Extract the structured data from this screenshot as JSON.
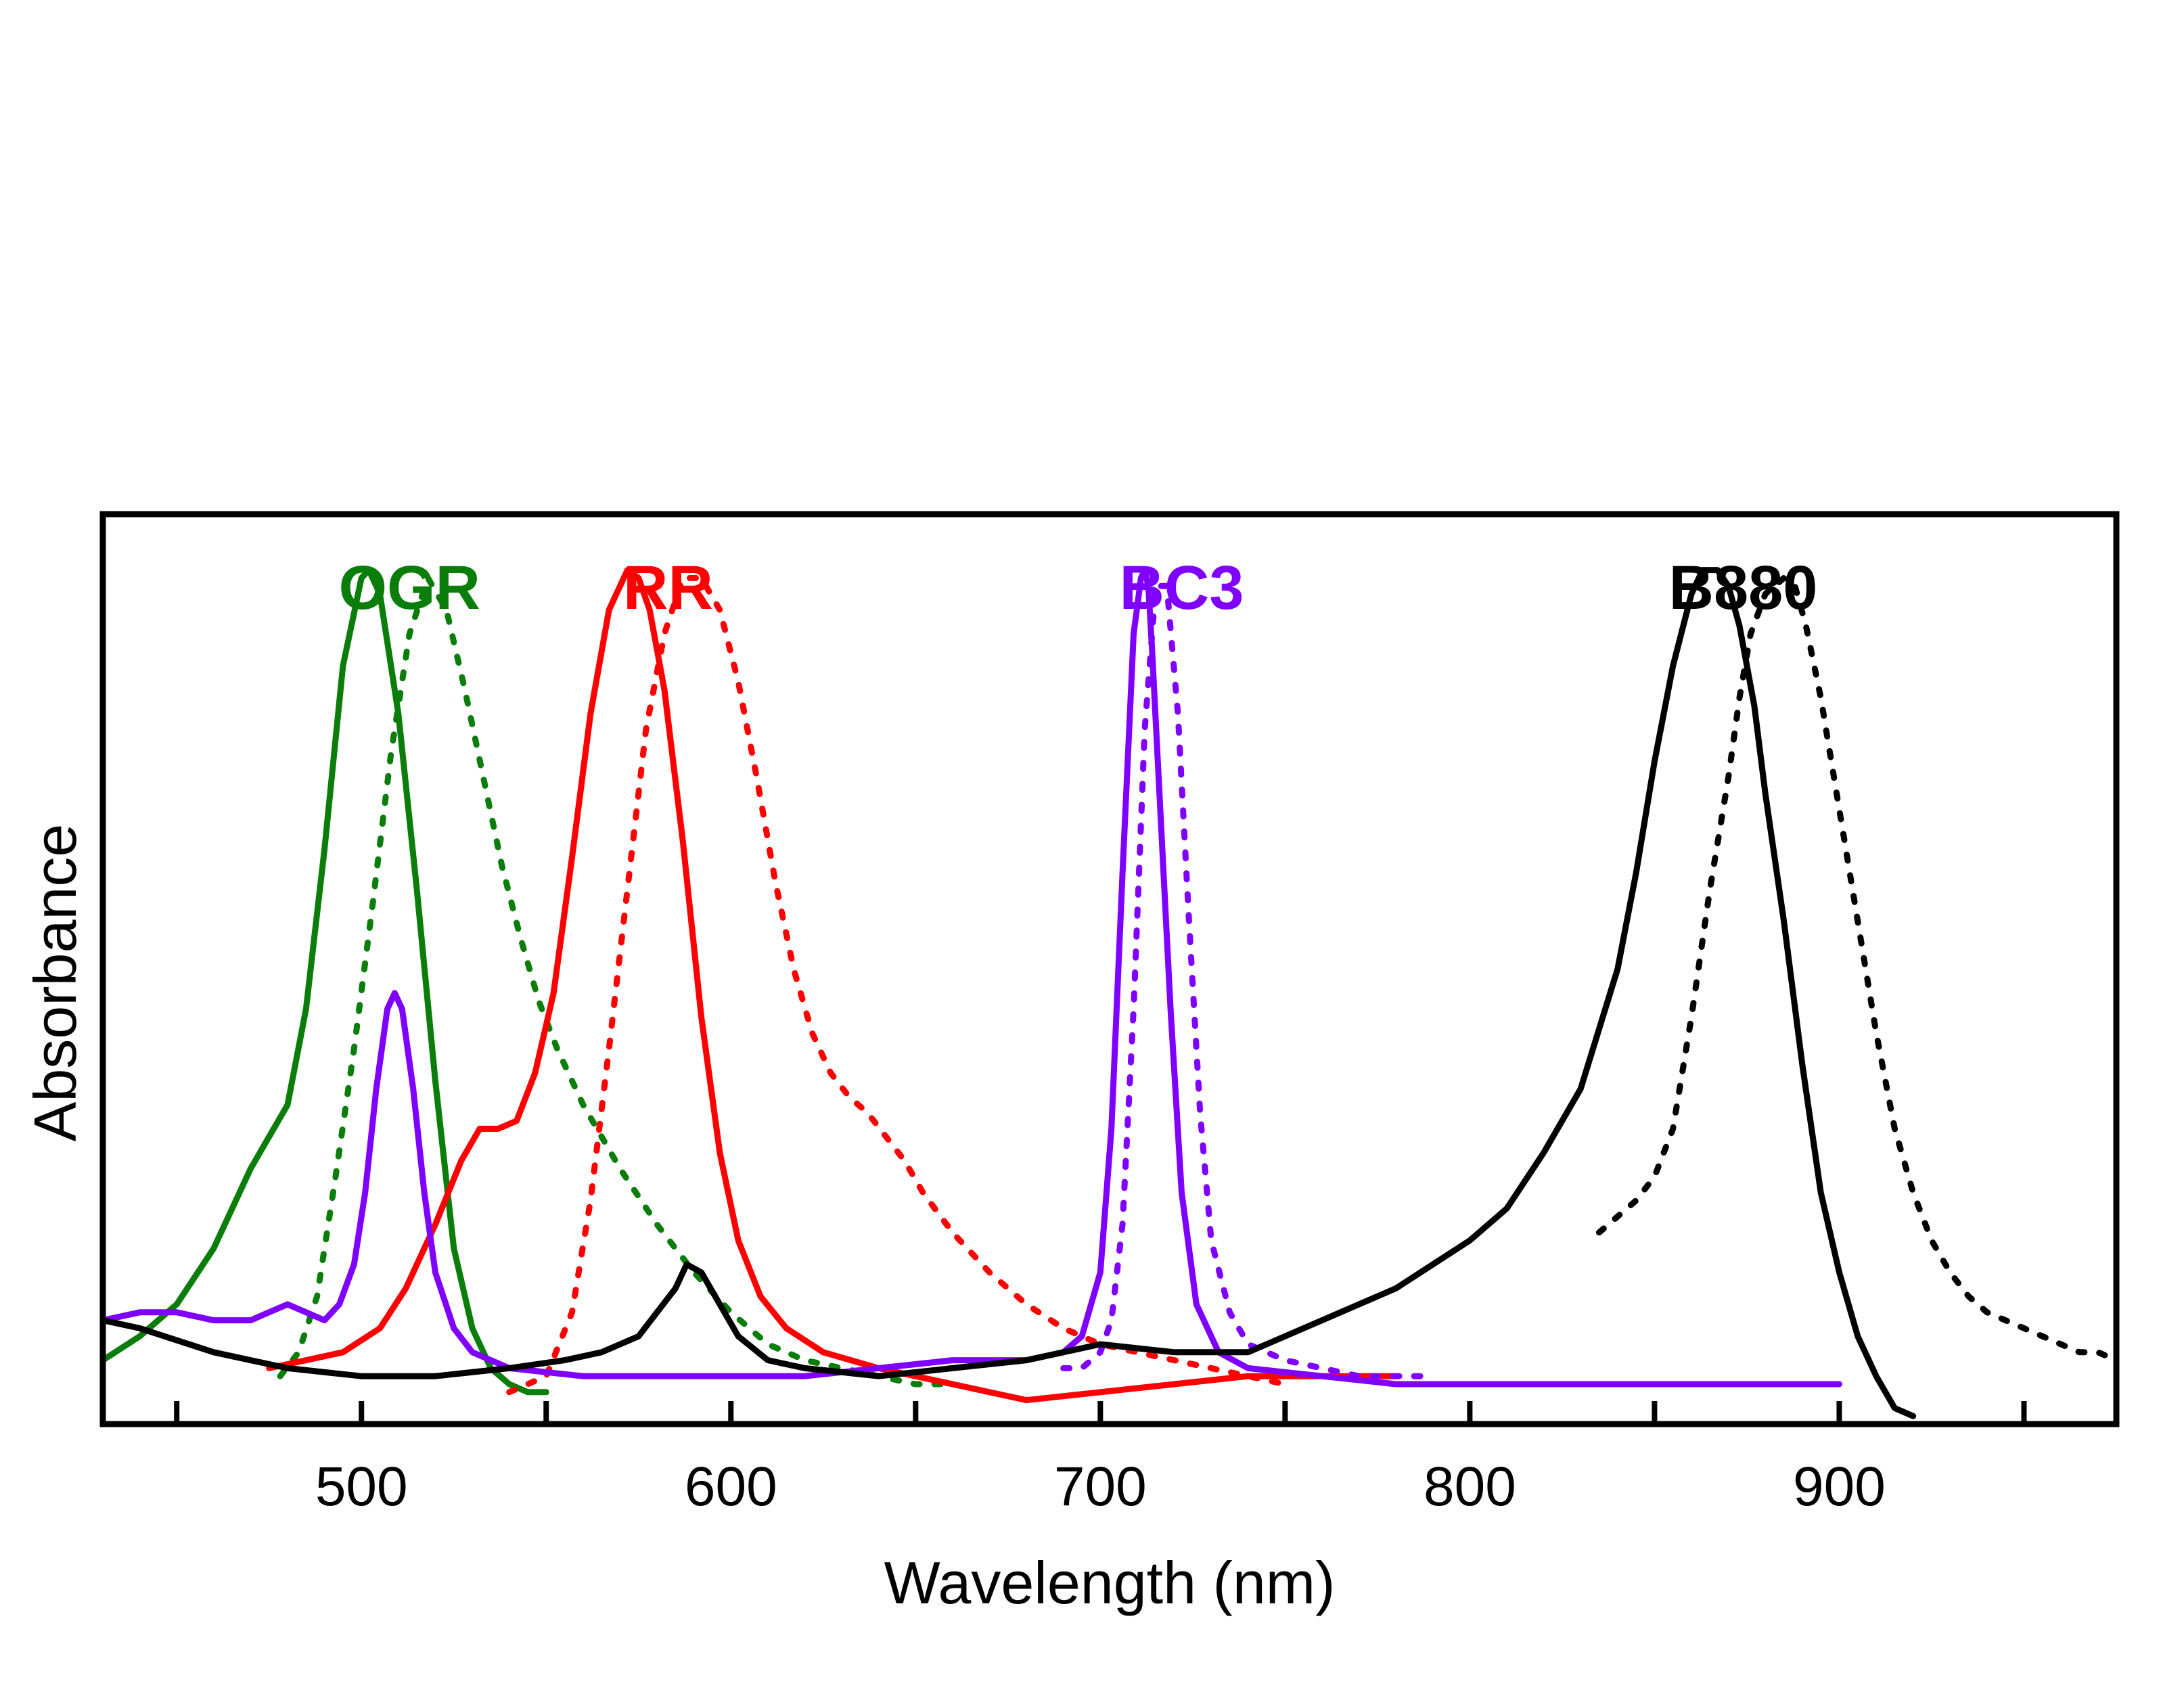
{
  "chart_data": {
    "type": "line",
    "xlabel": "Wavelength (nm)",
    "ylabel": "Absorbance",
    "xlim": [
      430,
      975
    ],
    "ylim": [
      -0.07,
      1.07
    ],
    "grid": false,
    "legend": "none",
    "x_ticks": [
      500,
      600,
      700,
      800,
      900
    ],
    "x_minor_ticks": [
      450,
      550,
      650,
      750,
      850,
      950
    ],
    "colors": {
      "OGR": "#0a7d0a",
      "RR": "#ff0000",
      "BC3": "#8000ff",
      "B880": "#000000"
    },
    "labels": [
      {
        "name": "OGR",
        "text": "OGR",
        "x": 513,
        "color": "#0a7d0a"
      },
      {
        "name": "RR",
        "text": "RR",
        "x": 583,
        "color": "#ff0000"
      },
      {
        "name": "BC3",
        "text": "BC3",
        "x": 722,
        "color": "#8000ff"
      },
      {
        "name": "B880",
        "text": "B880",
        "x": 874,
        "color": "#000000"
      }
    ],
    "series": [
      {
        "name": "OGR",
        "style": "solid",
        "color": "#0a7d0a",
        "x": [
          430,
          440,
          450,
          460,
          470,
          475,
          480,
          485,
          490,
          495,
          500,
          502,
          505,
          510,
          515,
          520,
          525,
          530,
          535,
          540,
          545,
          550
        ],
        "y": [
          0.01,
          0.04,
          0.08,
          0.15,
          0.25,
          0.29,
          0.33,
          0.45,
          0.65,
          0.88,
          0.99,
          1.0,
          0.97,
          0.82,
          0.6,
          0.36,
          0.15,
          0.05,
          0.0,
          -0.02,
          -0.03,
          -0.03
        ]
      },
      {
        "name": "OGR",
        "style": "dotted",
        "color": "#0a7d0a",
        "x": [
          478,
          483,
          488,
          493,
          498,
          503,
          508,
          513,
          518,
          523,
          528,
          533,
          538,
          543,
          548,
          553,
          560,
          570,
          580,
          590,
          600,
          610,
          620,
          630,
          640,
          650,
          660
        ],
        "y": [
          -0.01,
          0.02,
          0.09,
          0.24,
          0.4,
          0.58,
          0.77,
          0.92,
          0.99,
          0.95,
          0.85,
          0.74,
          0.63,
          0.54,
          0.46,
          0.4,
          0.33,
          0.25,
          0.18,
          0.12,
          0.07,
          0.03,
          0.01,
          0.0,
          -0.01,
          -0.02,
          -0.02
        ]
      },
      {
        "name": "RR",
        "style": "solid",
        "color": "#ff0000",
        "x": [
          475,
          485,
          495,
          505,
          512,
          520,
          527,
          532,
          537,
          542,
          547,
          552,
          557,
          562,
          567,
          572,
          575,
          578,
          582,
          587,
          592,
          597,
          602,
          608,
          615,
          625,
          640,
          660,
          680,
          700,
          720,
          740,
          760,
          780
        ],
        "y": [
          0.0,
          0.01,
          0.02,
          0.05,
          0.1,
          0.18,
          0.26,
          0.3,
          0.3,
          0.31,
          0.37,
          0.47,
          0.64,
          0.82,
          0.95,
          1.0,
          0.99,
          0.95,
          0.85,
          0.66,
          0.44,
          0.27,
          0.16,
          0.09,
          0.05,
          0.02,
          0.0,
          -0.02,
          -0.04,
          -0.03,
          -0.02,
          -0.01,
          -0.01,
          -0.01
        ]
      },
      {
        "name": "RR",
        "style": "dotted",
        "color": "#ff0000",
        "x": [
          540,
          550,
          557,
          562,
          567,
          572,
          577,
          582,
          587,
          592,
          597,
          602,
          607,
          612,
          617,
          622,
          627,
          632,
          637,
          642,
          647,
          652,
          660,
          670,
          680,
          690,
          700,
          710,
          720,
          730,
          740,
          750
        ],
        "y": [
          -0.03,
          -0.01,
          0.07,
          0.21,
          0.4,
          0.6,
          0.8,
          0.92,
          0.99,
          0.99,
          0.95,
          0.86,
          0.74,
          0.61,
          0.5,
          0.42,
          0.37,
          0.34,
          0.32,
          0.29,
          0.26,
          0.22,
          0.17,
          0.12,
          0.08,
          0.05,
          0.03,
          0.02,
          0.01,
          0.0,
          -0.01,
          -0.02
        ]
      },
      {
        "name": "BC3",
        "style": "solid",
        "color": "#8000ff",
        "x": [
          430,
          440,
          450,
          460,
          470,
          475,
          480,
          485,
          490,
          494,
          498,
          501,
          504,
          507,
          509,
          511,
          514,
          517,
          520,
          525,
          530,
          540,
          560,
          580,
          600,
          620,
          640,
          660,
          680,
          690,
          695,
          700,
          703,
          706,
          709,
          711,
          712,
          713,
          714,
          716,
          719,
          722,
          726,
          732,
          740,
          760,
          780,
          800,
          850,
          900
        ],
        "y": [
          0.06,
          0.07,
          0.07,
          0.06,
          0.06,
          0.07,
          0.08,
          0.07,
          0.06,
          0.08,
          0.13,
          0.22,
          0.35,
          0.45,
          0.47,
          0.45,
          0.35,
          0.22,
          0.12,
          0.05,
          0.02,
          0.0,
          -0.01,
          -0.01,
          -0.01,
          -0.01,
          0.0,
          0.01,
          0.01,
          0.02,
          0.04,
          0.12,
          0.3,
          0.62,
          0.92,
          0.99,
          1.0,
          0.98,
          0.9,
          0.72,
          0.45,
          0.22,
          0.08,
          0.02,
          0.0,
          -0.01,
          -0.02,
          -0.02,
          -0.02,
          -0.02
        ]
      },
      {
        "name": "BC3",
        "style": "dotted",
        "color": "#8000ff",
        "x": [
          690,
          695,
          700,
          703,
          706,
          709,
          712,
          715,
          718,
          721,
          724,
          727,
          730,
          735,
          740,
          750,
          760,
          770,
          780,
          790
        ],
        "y": [
          0.0,
          0.0,
          0.02,
          0.06,
          0.18,
          0.45,
          0.8,
          0.98,
          0.98,
          0.82,
          0.56,
          0.32,
          0.16,
          0.07,
          0.03,
          0.01,
          0.0,
          -0.01,
          -0.01,
          -0.01
        ]
      },
      {
        "name": "B880",
        "style": "solid",
        "color": "#000000",
        "x": [
          430,
          440,
          460,
          480,
          500,
          520,
          540,
          555,
          565,
          575,
          580,
          585,
          588,
          592,
          597,
          602,
          610,
          620,
          640,
          660,
          680,
          700,
          720,
          740,
          760,
          780,
          800,
          810,
          820,
          830,
          840,
          845,
          850,
          855,
          860,
          863,
          867,
          870,
          873,
          877,
          880,
          885,
          890,
          895,
          900,
          905,
          910,
          915,
          920
        ],
        "y": [
          0.06,
          0.05,
          0.02,
          0.0,
          -0.01,
          -0.01,
          0.0,
          0.01,
          0.02,
          0.04,
          0.07,
          0.1,
          0.13,
          0.12,
          0.08,
          0.04,
          0.01,
          0.0,
          -0.01,
          0.0,
          0.01,
          0.03,
          0.02,
          0.02,
          0.06,
          0.1,
          0.16,
          0.2,
          0.27,
          0.35,
          0.5,
          0.62,
          0.76,
          0.88,
          0.97,
          1.0,
          1.0,
          0.98,
          0.93,
          0.83,
          0.72,
          0.56,
          0.38,
          0.22,
          0.12,
          0.04,
          -0.01,
          -0.05,
          -0.06
        ]
      },
      {
        "name": "B880",
        "style": "dotted",
        "color": "#000000",
        "x": [
          835,
          840,
          845,
          850,
          855,
          860,
          865,
          870,
          873,
          876,
          880,
          885,
          888,
          891,
          895,
          900,
          905,
          910,
          915,
          920,
          925,
          930,
          935,
          940,
          945,
          950,
          955,
          960,
          965,
          970,
          975
        ],
        "y": [
          0.17,
          0.19,
          0.21,
          0.24,
          0.3,
          0.44,
          0.6,
          0.74,
          0.84,
          0.92,
          0.97,
          0.99,
          0.98,
          0.93,
          0.84,
          0.7,
          0.56,
          0.42,
          0.3,
          0.22,
          0.16,
          0.12,
          0.09,
          0.07,
          0.06,
          0.05,
          0.04,
          0.03,
          0.02,
          0.02,
          0.01
        ]
      }
    ]
  }
}
